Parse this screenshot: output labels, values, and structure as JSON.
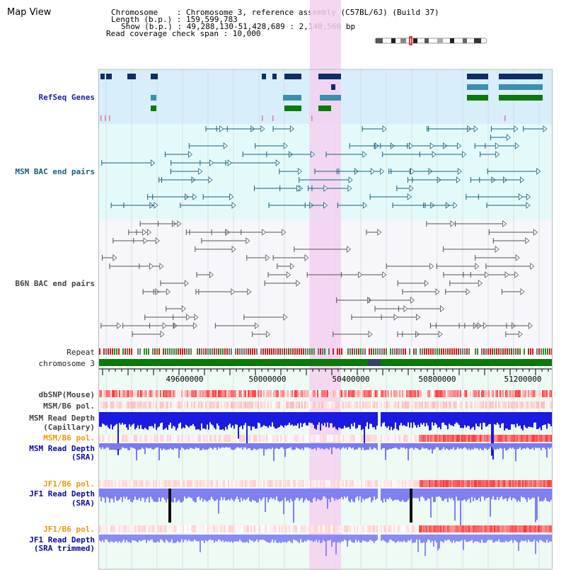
{
  "title": "Map View",
  "header": {
    "chromosome": "Chromosome    : Chromosome 3, reference assembly (C57BL/6J) (Build 37)",
    "length": "Length (b.p.) : 159,599,783",
    "show": "Show (b.p.) : 49,288,130-51,428,689 : 2,140,560 bp",
    "coverage": "Read coverage check span : 10,000"
  },
  "tracks": {
    "refseq": "RefSeq Genes",
    "msm_bac": "MSM BAC end pairs",
    "b6n_bac": "B6N BAC end pairs",
    "repeat": "Repeat",
    "chromosome": "chromosome 3",
    "dbsnp": "dbSNP(Mouse)",
    "msm_b6_pol_1": "MSM/B6 pol.",
    "msm_depth_cap_1": "MSM Read Depth",
    "msm_depth_cap_2": "(Capillary)",
    "msm_b6_pol_2": "MSM/B6 pol.",
    "msm_depth_sra_1": "MSM Read Depth",
    "msm_depth_sra_2": "(SRA)",
    "jf1_b6_pol_1": "JF1/B6 pol.",
    "jf1_depth_sra_1": "JF1 Read Depth",
    "jf1_depth_sra_2": "(SRA)",
    "jf1_b6_pol_2": "JF1/B6 pol.",
    "jf1_depth_trim_1": "JF1 Read Depth",
    "jf1_depth_trim_2": "(SRA trimmed)"
  },
  "ruler": {
    "ticks": [
      "49600000",
      "50000000",
      "50400000",
      "50800000",
      "51200000"
    ]
  },
  "colors": {
    "refseq_bg": "#d8eefa",
    "msm_bg": "#e4fafa",
    "highlight": "#f5d0f0",
    "chromosome": "#0a7a0a",
    "gene_dark": "#0b2f66",
    "gene_mid": "#3b8fb0",
    "gene_green": "#0a7a0a"
  }
}
